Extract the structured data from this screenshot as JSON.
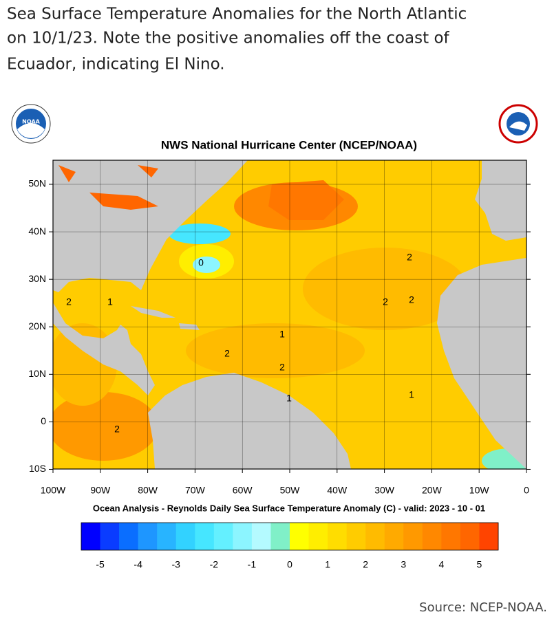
{
  "caption": {
    "lines": [
      "Sea Surface Temperature Anomalies for the North Atlantic",
      "on 10/1/23. Note the positive anomalies  off  the coast of",
      "Ecuador, indicating El Nino."
    ]
  },
  "logos": {
    "left": "NOAA"
  },
  "figure": {
    "title": "NWS National Hurricane Center (NCEP/NOAA)",
    "subtitle": "Ocean Analysis - Reynolds Daily Sea Surface Temperature Anomaly (C) - valid: 2023 - 10 - 01",
    "lat_labels": [
      "50N",
      "40N",
      "30N",
      "20N",
      "10N",
      "0",
      "10S"
    ],
    "lon_labels": [
      "100W",
      "90W",
      "80W",
      "70W",
      "60W",
      "50W",
      "40W",
      "30W",
      "20W",
      "10W",
      "0"
    ],
    "contour_labels": [
      "2",
      "1",
      "2",
      "1",
      "2",
      "2",
      "2",
      "2",
      "2",
      "0",
      "1",
      "1"
    ],
    "colorbar": {
      "ticks": [
        -5,
        -4,
        -3,
        -2,
        -1,
        0,
        1,
        2,
        3,
        4,
        5
      ],
      "colors": [
        "#0000ff",
        "#0a3cff",
        "#0a6eff",
        "#1e96ff",
        "#28b4ff",
        "#32d2ff",
        "#46e6ff",
        "#64f0ff",
        "#8cf5ff",
        "#b4faff",
        "#80f0c8",
        "#ffff00",
        "#ffee00",
        "#ffdd00",
        "#ffcc00",
        "#ffbb00",
        "#ffaa00",
        "#ff9900",
        "#ff8800",
        "#ff7700",
        "#ff6600",
        "#ff4400"
      ]
    }
  },
  "source": "Source: NCEP-NOAA."
}
